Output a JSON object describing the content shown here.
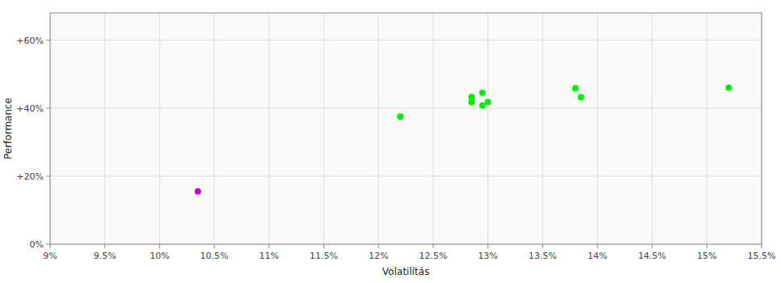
{
  "chart_data": {
    "type": "scatter",
    "xlabel": "Volatilítás",
    "ylabel": "Performance",
    "xlim": [
      0.09,
      0.155
    ],
    "ylim": [
      0.0,
      0.68
    ],
    "xticks": [
      {
        "value": 0.09,
        "label": "9%"
      },
      {
        "value": 0.095,
        "label": "9.5%"
      },
      {
        "value": 0.1,
        "label": "10%"
      },
      {
        "value": 0.105,
        "label": "10.5%"
      },
      {
        "value": 0.11,
        "label": "11%"
      },
      {
        "value": 0.115,
        "label": "11.5%"
      },
      {
        "value": 0.12,
        "label": "12%"
      },
      {
        "value": 0.125,
        "label": "12.5%"
      },
      {
        "value": 0.13,
        "label": "13%"
      },
      {
        "value": 0.135,
        "label": "13.5%"
      },
      {
        "value": 0.14,
        "label": "14%"
      },
      {
        "value": 0.145,
        "label": "14.5%"
      },
      {
        "value": 0.15,
        "label": "15%"
      },
      {
        "value": 0.155,
        "label": "15.5%"
      }
    ],
    "yticks": [
      {
        "value": 0.0,
        "label": "0%"
      },
      {
        "value": 0.2,
        "label": "+20%"
      },
      {
        "value": 0.4,
        "label": "+40%"
      },
      {
        "value": 0.6,
        "label": "+60%"
      }
    ],
    "grid": true,
    "series": [
      {
        "color": "#00ee00",
        "x": [
          0.122,
          0.1285,
          0.1285,
          0.1295,
          0.1295,
          0.13,
          0.138,
          0.1385,
          0.152
        ],
        "values": [
          0.375,
          0.418,
          0.433,
          0.445,
          0.408,
          0.418,
          0.458,
          0.432,
          0.46
        ]
      },
      {
        "color": "#cc00cc",
        "x": [
          0.1035
        ],
        "values": [
          0.155
        ]
      }
    ]
  }
}
